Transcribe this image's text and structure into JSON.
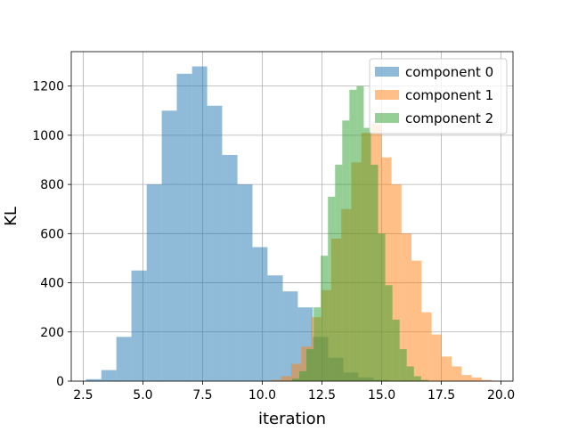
{
  "chart_data": {
    "type": "bar",
    "title": "",
    "xlabel": "iteration",
    "ylabel": "KL",
    "xlim": [
      2.0,
      20.5
    ],
    "ylim": [
      0,
      1340
    ],
    "xticks": [
      2.5,
      5.0,
      7.5,
      10.0,
      12.5,
      15.0,
      17.5,
      20.0
    ],
    "yticks": [
      0,
      200,
      400,
      600,
      800,
      1000,
      1200
    ],
    "grid": true,
    "legend": "top-right",
    "series": [
      {
        "name": "component 0",
        "color": "#1f77b4",
        "opacity": 0.5,
        "bins": [
          [
            2.62,
            3.26,
            8
          ],
          [
            3.26,
            3.89,
            45
          ],
          [
            3.89,
            4.52,
            180
          ],
          [
            4.52,
            5.16,
            450
          ],
          [
            5.16,
            5.79,
            800
          ],
          [
            5.79,
            6.42,
            1100
          ],
          [
            6.42,
            7.06,
            1250
          ],
          [
            7.06,
            7.69,
            1280
          ],
          [
            7.69,
            8.32,
            1120
          ],
          [
            8.32,
            8.96,
            920
          ],
          [
            8.96,
            9.59,
            800
          ],
          [
            9.59,
            10.22,
            545
          ],
          [
            10.22,
            10.86,
            430
          ],
          [
            10.86,
            11.49,
            365
          ],
          [
            11.49,
            12.12,
            300
          ],
          [
            12.12,
            12.76,
            180
          ],
          [
            12.76,
            13.39,
            95
          ],
          [
            13.39,
            14.02,
            35
          ],
          [
            14.02,
            14.66,
            15
          ],
          [
            14.66,
            15.29,
            5
          ]
        ]
      },
      {
        "name": "component 1",
        "color": "#ff7f0e",
        "opacity": 0.5,
        "bins": [
          [
            10.37,
            10.79,
            5
          ],
          [
            10.79,
            11.21,
            20
          ],
          [
            11.21,
            11.63,
            70
          ],
          [
            11.63,
            12.05,
            140
          ],
          [
            12.05,
            12.47,
            260
          ],
          [
            12.47,
            12.89,
            370
          ],
          [
            12.89,
            13.31,
            580
          ],
          [
            13.31,
            13.73,
            700
          ],
          [
            13.73,
            14.15,
            890
          ],
          [
            14.15,
            14.57,
            1010
          ],
          [
            14.57,
            14.99,
            1045
          ],
          [
            14.99,
            15.41,
            910
          ],
          [
            15.41,
            15.83,
            800
          ],
          [
            15.83,
            16.25,
            600
          ],
          [
            16.25,
            16.67,
            490
          ],
          [
            16.67,
            17.09,
            280
          ],
          [
            17.09,
            17.51,
            190
          ],
          [
            17.51,
            17.93,
            100
          ],
          [
            17.93,
            18.35,
            60
          ],
          [
            18.35,
            18.77,
            25
          ],
          [
            18.77,
            19.19,
            15
          ],
          [
            19.19,
            19.61,
            5
          ],
          [
            19.61,
            19.85,
            2
          ]
        ]
      },
      {
        "name": "component 2",
        "color": "#2ca02c",
        "opacity": 0.5,
        "bins": [
          [
            11.25,
            11.55,
            10
          ],
          [
            11.55,
            11.85,
            40
          ],
          [
            11.85,
            12.15,
            130
          ],
          [
            12.15,
            12.45,
            300
          ],
          [
            12.45,
            12.75,
            510
          ],
          [
            12.75,
            13.05,
            750
          ],
          [
            13.05,
            13.35,
            880
          ],
          [
            13.35,
            13.65,
            1060
          ],
          [
            13.65,
            13.95,
            1185
          ],
          [
            13.95,
            14.25,
            1200
          ],
          [
            14.25,
            14.55,
            1030
          ],
          [
            14.55,
            14.85,
            880
          ],
          [
            14.85,
            15.15,
            600
          ],
          [
            15.15,
            15.45,
            390
          ],
          [
            15.45,
            15.75,
            250
          ],
          [
            15.75,
            16.05,
            130
          ],
          [
            16.05,
            16.35,
            60
          ],
          [
            16.35,
            16.65,
            20
          ],
          [
            16.65,
            16.95,
            5
          ]
        ]
      }
    ]
  }
}
